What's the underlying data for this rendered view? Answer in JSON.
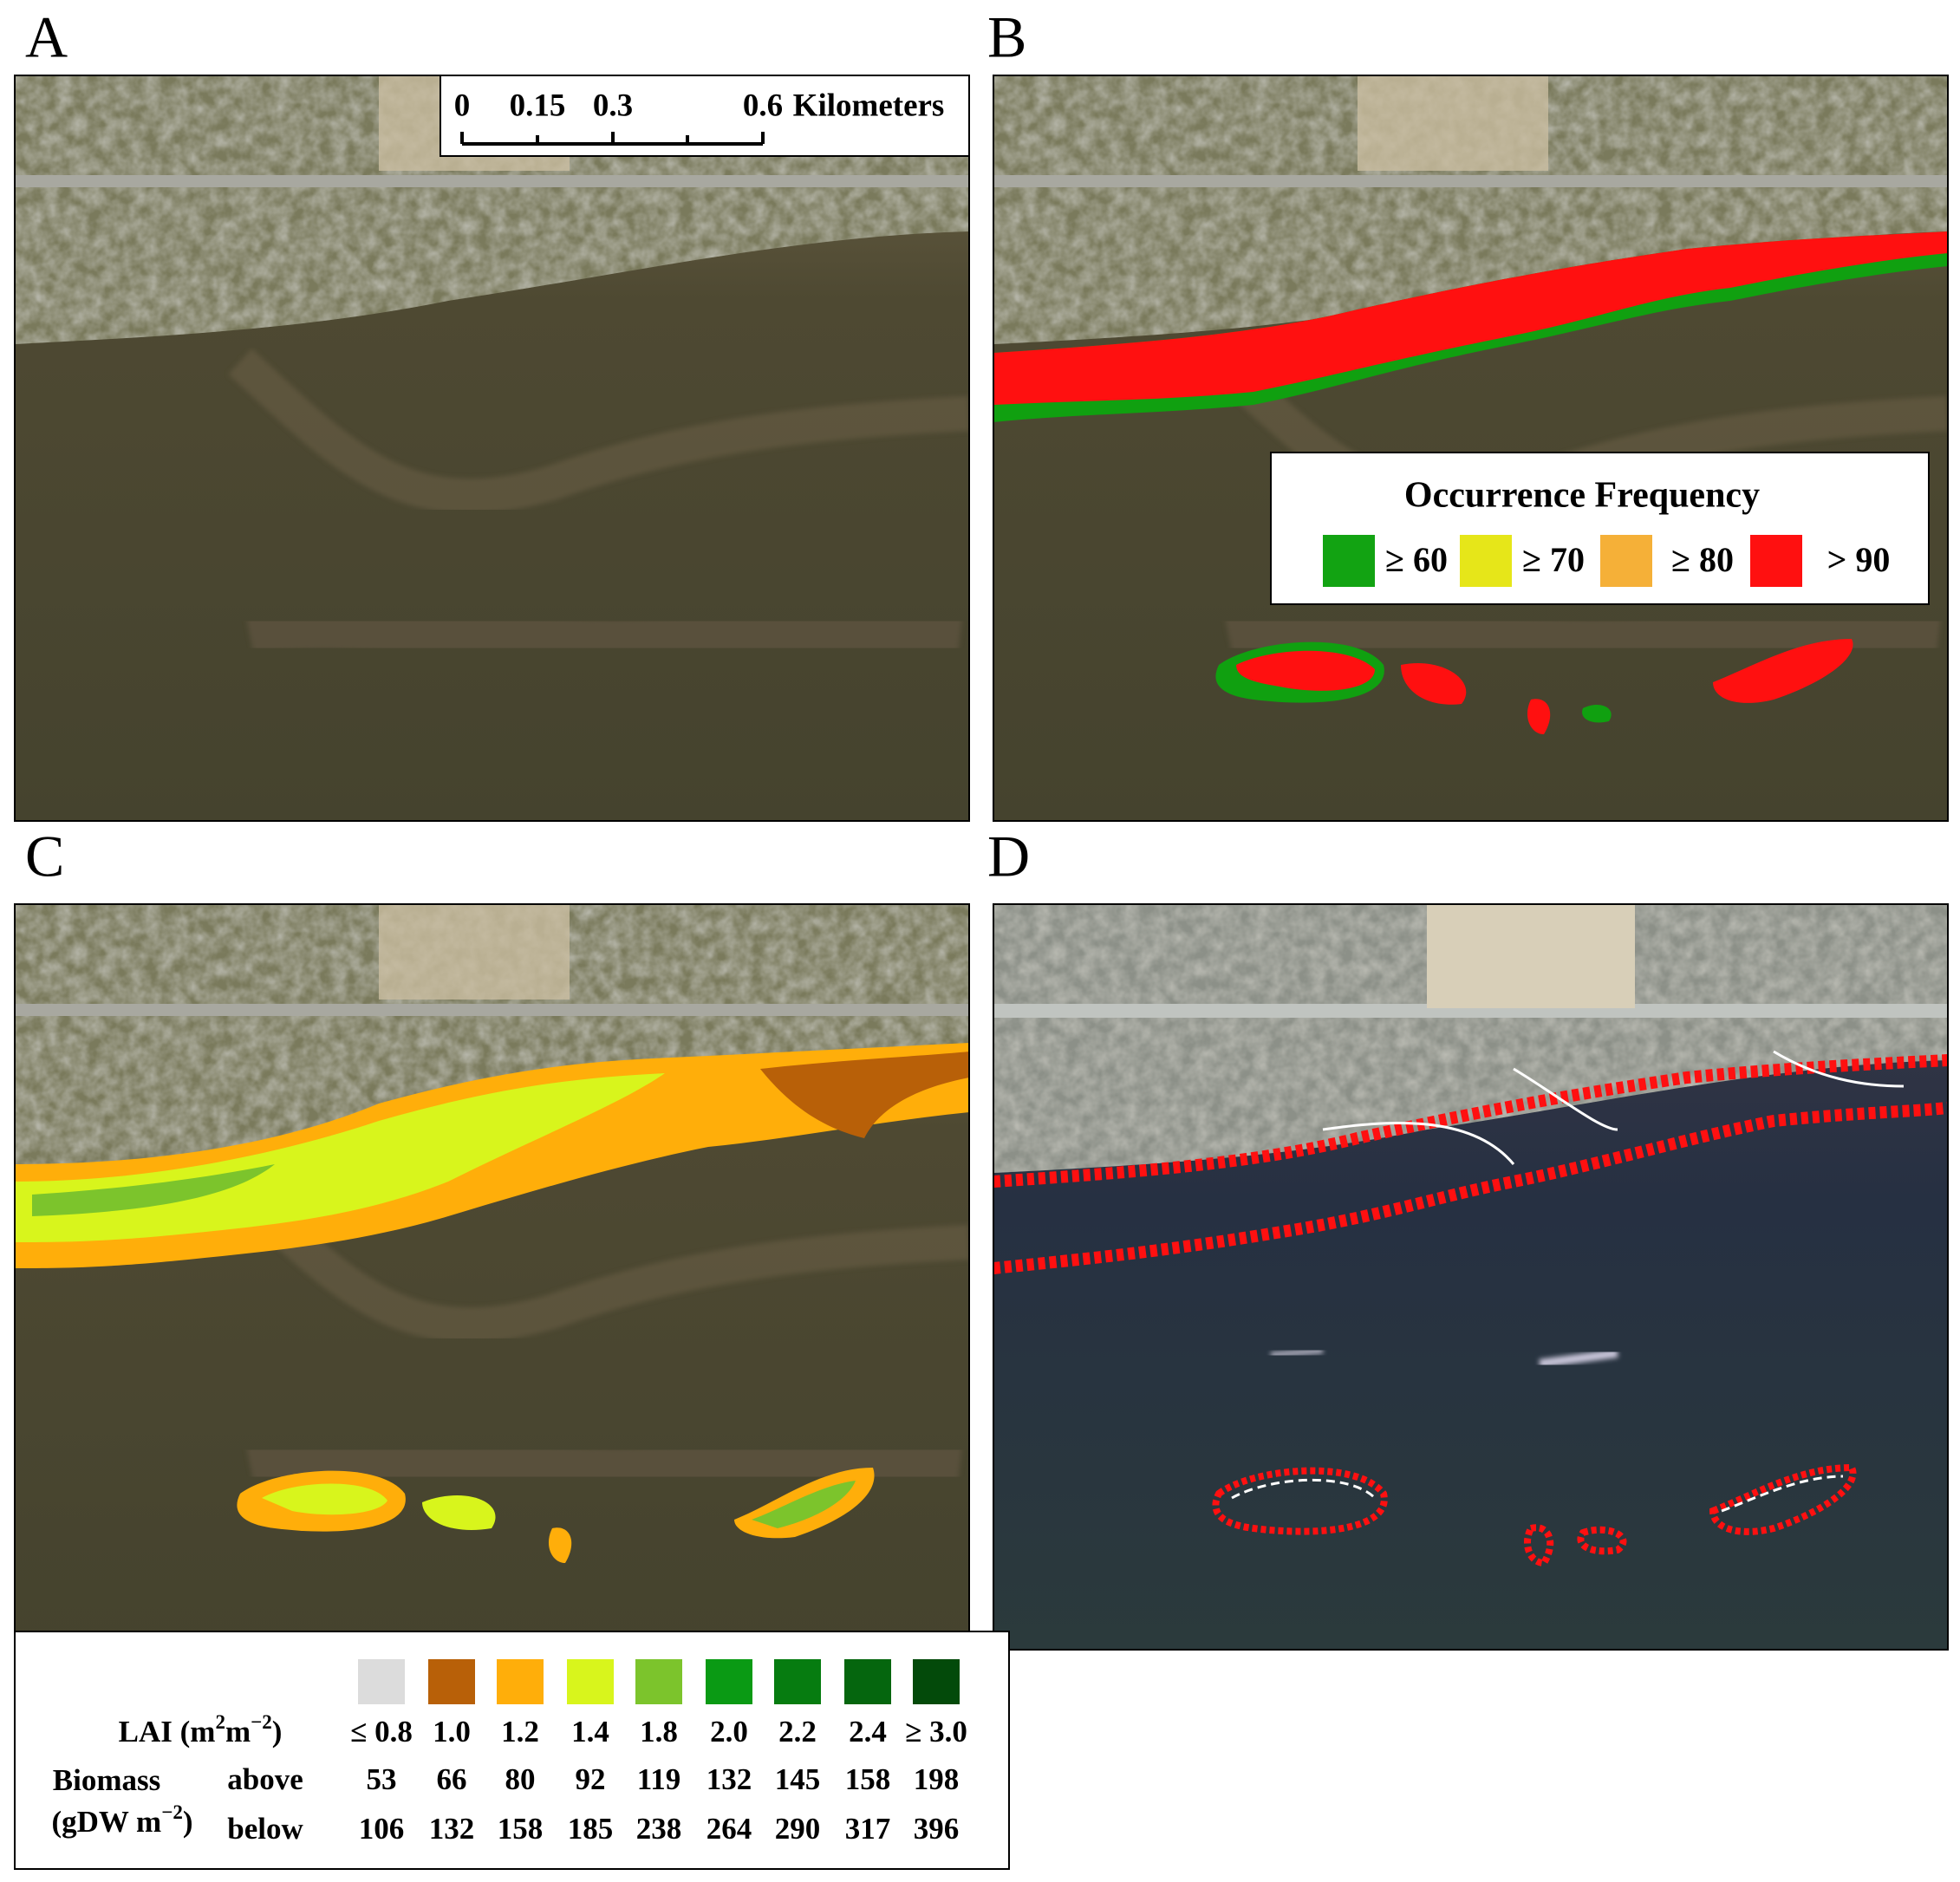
{
  "panels": [
    {
      "label": "A"
    },
    {
      "label": "B"
    },
    {
      "label": "C"
    },
    {
      "label": "D"
    }
  ],
  "scale_bar": {
    "ticks": [
      "0",
      "0.15",
      "0.3",
      "0.6"
    ],
    "unit": "Kilometers"
  },
  "frequency_legend": {
    "title": "Occurrence Frequency",
    "items": [
      {
        "label": "≥ 60",
        "color": "#12a312"
      },
      {
        "label": "≥ 70",
        "color": "#e6e619"
      },
      {
        "label": "≥ 80",
        "color": "#f5b038"
      },
      {
        "label": "> 90",
        "color": "#ff1010"
      }
    ]
  },
  "lai_legend": {
    "lai_label": [
      "LAI  (m",
      "2",
      "m",
      "−2",
      ")"
    ],
    "biomass_label": "Biomass",
    "biomass_unit": [
      "(gDW m",
      "−2",
      ")"
    ],
    "above_label": "above",
    "below_label": "below",
    "classes": [
      {
        "lai": "≤ 0.8",
        "color": "#dcdcdc",
        "above": 53,
        "below": 106
      },
      {
        "lai": "1.0",
        "color": "#b86008",
        "above": 66,
        "below": 132
      },
      {
        "lai": "1.2",
        "color": "#ffae0a",
        "above": 80,
        "below": 158
      },
      {
        "lai": "1.4",
        "color": "#d8f51c",
        "above": 92,
        "below": 185
      },
      {
        "lai": "1.8",
        "color": "#7cc42c",
        "above": 119,
        "below": 238
      },
      {
        "lai": "2.0",
        "color": "#0a9a14",
        "above": 132,
        "below": 264
      },
      {
        "lai": "2.2",
        "color": "#067c10",
        "above": 145,
        "below": 290
      },
      {
        "lai": "2.4",
        "color": "#05660e",
        "above": 158,
        "below": 317
      },
      {
        "lai": "≥ 3.0",
        "color": "#034a0a",
        "above": 198,
        "below": 396
      }
    ]
  }
}
